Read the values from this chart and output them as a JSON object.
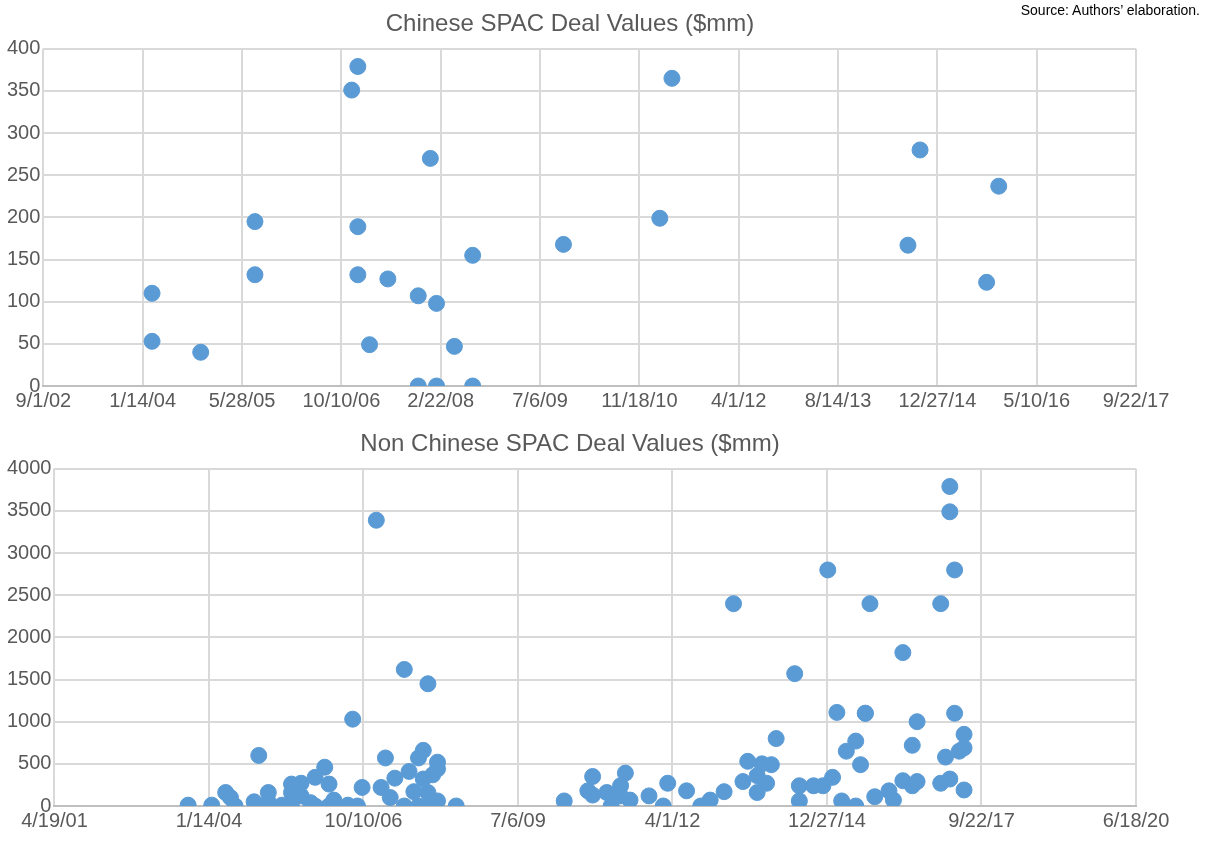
{
  "chart_data": [
    {
      "type": "scatter",
      "title": "Chinese SPAC Deal Values ($mm)",
      "annotations": [
        "Source: Authors’ elaboration."
      ],
      "marker": "circle",
      "grid": true,
      "legend": false,
      "xlim": [
        "2002-09-01",
        "2017-09-22"
      ],
      "xticks": [
        {
          "value": "2002-09-01",
          "label": "9/1/02"
        },
        {
          "value": "2004-01-14",
          "label": "1/14/04"
        },
        {
          "value": "2005-05-28",
          "label": "5/28/05"
        },
        {
          "value": "2006-10-10",
          "label": "10/10/06"
        },
        {
          "value": "2008-02-22",
          "label": "2/22/08"
        },
        {
          "value": "2009-07-06",
          "label": "7/6/09"
        },
        {
          "value": "2010-11-18",
          "label": "11/18/10"
        },
        {
          "value": "2012-04-01",
          "label": "4/1/12"
        },
        {
          "value": "2013-08-14",
          "label": "8/14/13"
        },
        {
          "value": "2014-12-27",
          "label": "12/27/14"
        },
        {
          "value": "2016-05-10",
          "label": "5/10/16"
        },
        {
          "value": "2017-09-22",
          "label": "9/22/17"
        }
      ],
      "ylim": [
        0,
        400
      ],
      "yticks": [
        0,
        50,
        100,
        150,
        200,
        250,
        300,
        350,
        400
      ],
      "series": [
        {
          "color": "#5b9bd5",
          "x": [
            "2004-03",
            "2004-03",
            "2004-11",
            "2005-08",
            "2005-08",
            "2006-12",
            "2007-01",
            "2007-01",
            "2007-01",
            "2007-03",
            "2007-06",
            "2007-11",
            "2007-11",
            "2008-01",
            "2008-02",
            "2008-02",
            "2008-05",
            "2008-08",
            "2008-08",
            "2009-11",
            "2011-03",
            "2011-05",
            "2014-08",
            "2014-10",
            "2015-09",
            "2015-11"
          ],
          "values": [
            110,
            53,
            40,
            195,
            132,
            351,
            379,
            189,
            132,
            49,
            127,
            107,
            0,
            270,
            98,
            0,
            47,
            0,
            155,
            168,
            199,
            365,
            167,
            280,
            123,
            237
          ]
        }
      ]
    },
    {
      "type": "scatter",
      "title": "Non Chinese SPAC Deal Values ($mm)",
      "marker": "circle",
      "grid": true,
      "legend": false,
      "xlim": [
        "2001-04-19",
        "2020-06-18"
      ],
      "xticks": [
        {
          "value": "2001-04-19",
          "label": "4/19/01"
        },
        {
          "value": "2004-01-14",
          "label": "1/14/04"
        },
        {
          "value": "2006-10-10",
          "label": "10/10/06"
        },
        {
          "value": "2009-07-06",
          "label": "7/6/09"
        },
        {
          "value": "2012-04-01",
          "label": "4/1/12"
        },
        {
          "value": "2014-12-27",
          "label": "12/27/14"
        },
        {
          "value": "2017-09-22",
          "label": "9/22/17"
        },
        {
          "value": "2020-06-18",
          "label": "6/18/20"
        }
      ],
      "ylim": [
        0,
        4000
      ],
      "yticks": [
        0,
        500,
        1000,
        1500,
        2000,
        2500,
        3000,
        3500,
        4000
      ],
      "series": [
        {
          "color": "#5b9bd5",
          "x": [
            "2003-09",
            "2004-02",
            "2004-05",
            "2004-06",
            "2004-07",
            "2004-11",
            "2004-12",
            "2005-02",
            "2005-02",
            "2005-05",
            "2005-07",
            "2005-07",
            "2005-07",
            "2005-09",
            "2005-09",
            "2005-11",
            "2005-12",
            "2006-02",
            "2006-03",
            "2005-12",
            "2006-03",
            "2006-04",
            "2006-07",
            "2006-09",
            "2006-08",
            "2006-10",
            "2007-01",
            "2007-02",
            "2007-03",
            "2007-04",
            "2007-05",
            "2007-07",
            "2007-07",
            "2007-08",
            "2007-09",
            "2007-10",
            "2007-11",
            "2007-11",
            "2007-10",
            "2007-12",
            "2007-12",
            "2007-12",
            "2008-01",
            "2008-02",
            "2008-02",
            "2008-02",
            "2008-06",
            "2010-05",
            "2010-10",
            "2010-11",
            "2010-11",
            "2011-02",
            "2011-03",
            "2011-05",
            "2011-05",
            "2011-06",
            "2011-07",
            "2011-11",
            "2012-02",
            "2012-03",
            "2012-07",
            "2012-10",
            "2012-12",
            "2013-03",
            "2013-05",
            "2013-07",
            "2013-08",
            "2013-10",
            "2013-10",
            "2013-11",
            "2013-12",
            "2014-01",
            "2014-02",
            "2014-06",
            "2014-07",
            "2014-07",
            "2014-10",
            "2014-12",
            "2015-01",
            "2015-02",
            "2015-03",
            "2015-04",
            "2015-05",
            "2015-07",
            "2015-07",
            "2015-08",
            "2015-09",
            "2015-09",
            "2015-10",
            "2015-11",
            "2016-02",
            "2016-03",
            "2016-05",
            "2016-05",
            "2016-07",
            "2016-07",
            "2016-08",
            "2016-08",
            "2017-01",
            "2017-01",
            "2017-02",
            "2017-03",
            "2017-03",
            "2017-03",
            "2017-04",
            "2017-04",
            "2017-05",
            "2017-06",
            "2017-06",
            "2017-06"
          ],
          "values": [
            10,
            10,
            160,
            100,
            0,
            50,
            600,
            160,
            50,
            10,
            260,
            160,
            0,
            270,
            120,
            40,
            340,
            460,
            260,
            0,
            0,
            70,
            10,
            0,
            1030,
            220,
            3390,
            220,
            570,
            100,
            330,
            1620,
            0,
            410,
            170,
            570,
            660,
            320,
            0,
            1450,
            160,
            0,
            370,
            520,
            440,
            60,
            0,
            60,
            180,
            350,
            130,
            160,
            0,
            240,
            120,
            390,
            70,
            120,
            0,
            270,
            180,
            0,
            70,
            170,
            2400,
            290,
            530,
            160,
            360,
            500,
            270,
            490,
            800,
            1570,
            240,
            60,
            240,
            240,
            2800,
            340,
            1110,
            60,
            650,
            770,
            0,
            490,
            1100,
            1100,
            2400,
            110,
            180,
            70,
            1820,
            300,
            720,
            240,
            290,
            1000,
            2400,
            270,
            580,
            3790,
            3490,
            320,
            2800,
            1100,
            650,
            850,
            690,
            190
          ]
        }
      ]
    }
  ]
}
